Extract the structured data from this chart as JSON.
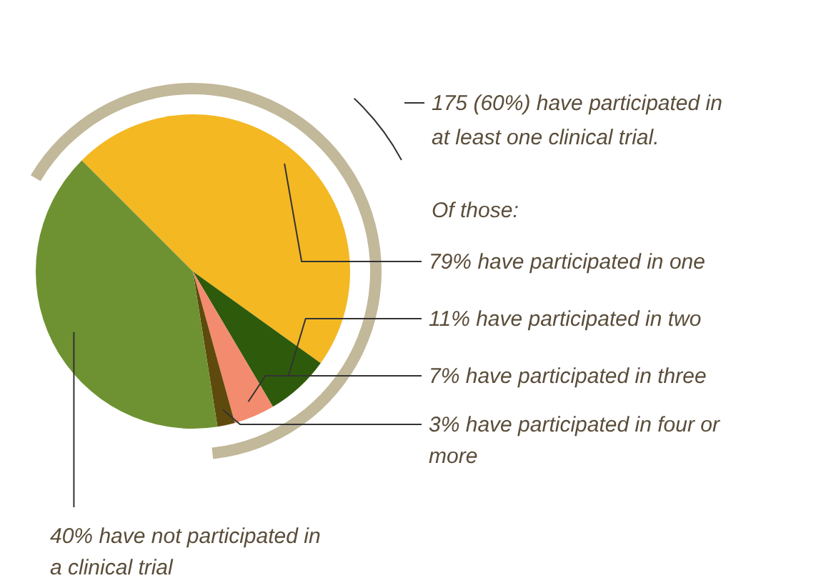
{
  "chart_data": {
    "type": "pie",
    "categories": [
      "79% have participated in one",
      "11% have participated in two",
      "7% have participated in three",
      "3% have participated in four or more",
      "40% have not participated in a clinical trial"
    ],
    "values": [
      47.4,
      6.6,
      4.2,
      1.8,
      40
    ],
    "colors": [
      "#f4b823",
      "#2e5b0b",
      "#f38b6e",
      "#5e4a0c",
      "#6e9232"
    ],
    "annotations": [
      "175 (60%) have participated in at least one clinical trial.",
      "Of those:"
    ]
  }
}
